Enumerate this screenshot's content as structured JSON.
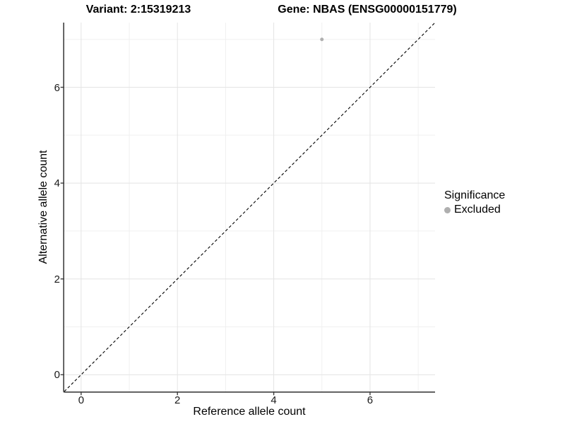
{
  "titles": {
    "variant": "Variant: 2:15319213",
    "gene": "Gene: NBAS (ENSG00000151779)"
  },
  "chart_data": {
    "type": "scatter",
    "title_left": "Variant: 2:15319213",
    "title_right": "Gene: NBAS (ENSG00000151779)",
    "xlabel": "Reference allele count",
    "ylabel": "Alternative allele count",
    "xlim": [
      -0.35,
      7.35
    ],
    "ylim": [
      -0.35,
      7.35
    ],
    "x_ticks": [
      0,
      2,
      4,
      6
    ],
    "y_ticks": [
      0,
      2,
      4,
      6
    ],
    "x_minor_ticks": [
      1,
      3,
      5,
      7
    ],
    "y_minor_ticks": [
      1,
      3,
      5,
      7
    ],
    "grid": true,
    "points": [
      {
        "x": 5,
        "y": 7,
        "series": "Excluded"
      }
    ],
    "reference_line": {
      "type": "identity",
      "style": "dashed",
      "from": [
        -0.35,
        -0.35
      ],
      "to": [
        7.35,
        7.35
      ]
    },
    "legend": {
      "title": "Significance",
      "position": "right",
      "items": [
        {
          "label": "Excluded",
          "color": "#AFAFAF"
        }
      ]
    },
    "colors": {
      "point": "#AFAFAF",
      "grid_major": "#E4E4E4",
      "grid_minor": "#F0F0F0",
      "axis_line": "#3f3f3f",
      "reference_line": "#000000",
      "background": "#FFFFFF"
    }
  }
}
